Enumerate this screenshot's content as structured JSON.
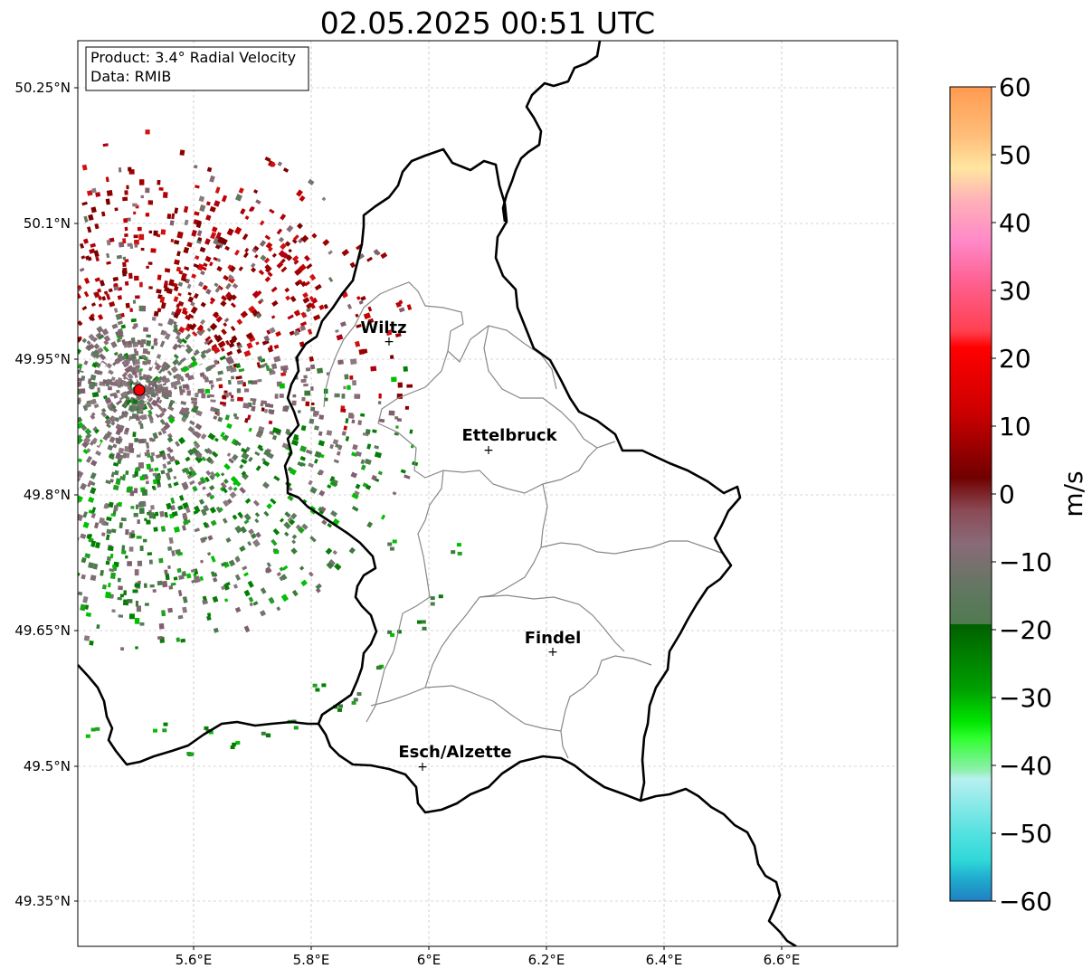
{
  "title": "02.05.2025 00:51 UTC",
  "info_box": {
    "product": "Product: 3.4° Radial Velocity",
    "data": "Data: RMIB"
  },
  "axes": {
    "lon_ticks": [
      "5.6°E",
      "5.8°E",
      "6°E",
      "6.2°E",
      "6.4°E",
      "6.6°E"
    ],
    "lat_ticks": [
      "50.25°N",
      "50.1°N",
      "49.95°N",
      "49.8°N",
      "49.65°N",
      "49.5°N",
      "49.35°N"
    ],
    "grid": true
  },
  "places": [
    {
      "name": "Wiltz"
    },
    {
      "name": "Ettelbruck"
    },
    {
      "name": "Findel"
    },
    {
      "name": "Esch/Alzette"
    }
  ],
  "colorbar": {
    "label": "m/s",
    "ticks": [
      "60",
      "50",
      "40",
      "30",
      "20",
      "10",
      "0",
      "−10",
      "−20",
      "−30",
      "−40",
      "−50",
      "−60"
    ],
    "range": [
      -60,
      60
    ]
  },
  "colors": {
    "radar_site": "#ff0000",
    "border": "#000000",
    "canton_lines": "#888888"
  }
}
